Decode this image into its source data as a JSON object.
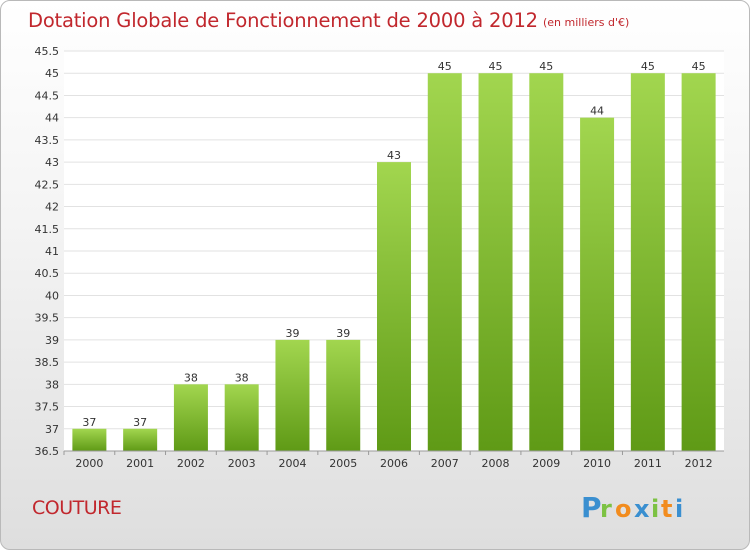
{
  "header": {
    "title": "Dotation Globale de Fonctionnement de 2000 à 2012",
    "unit_note": "(en milliers d'€)"
  },
  "footer": {
    "commune": "COUTURE",
    "logo_text": "Proxiti"
  },
  "colors": {
    "title": "#c1272d",
    "bar_light": "#a2d64f",
    "bar_dark": "#5f9a16",
    "logo_blue": "#3a8fd0",
    "logo_green": "#7cc243",
    "logo_orange": "#f28c1e"
  },
  "chart_data": {
    "type": "bar",
    "categories": [
      "2000",
      "2001",
      "2002",
      "2003",
      "2004",
      "2005",
      "2006",
      "2007",
      "2008",
      "2009",
      "2010",
      "2011",
      "2012"
    ],
    "values": [
      37,
      37,
      38,
      38,
      39,
      39,
      43,
      45,
      45,
      45,
      44,
      45,
      45
    ],
    "value_labels": [
      "37",
      "37",
      "38",
      "38",
      "39",
      "39",
      "43",
      "45",
      "45",
      "45",
      "44",
      "45",
      "45"
    ],
    "y_ticks": [
      "36.5",
      "37",
      "37.5",
      "38",
      "38.5",
      "39",
      "39.5",
      "40",
      "40.5",
      "41",
      "41.5",
      "42",
      "42.5",
      "43",
      "43.5",
      "44",
      "44.5",
      "45",
      "45.5"
    ],
    "ylim": [
      36.5,
      45.5
    ],
    "grid": true,
    "title": "Dotation Globale de Fonctionnement de 2000 à 2012",
    "xlabel": "",
    "ylabel": ""
  }
}
